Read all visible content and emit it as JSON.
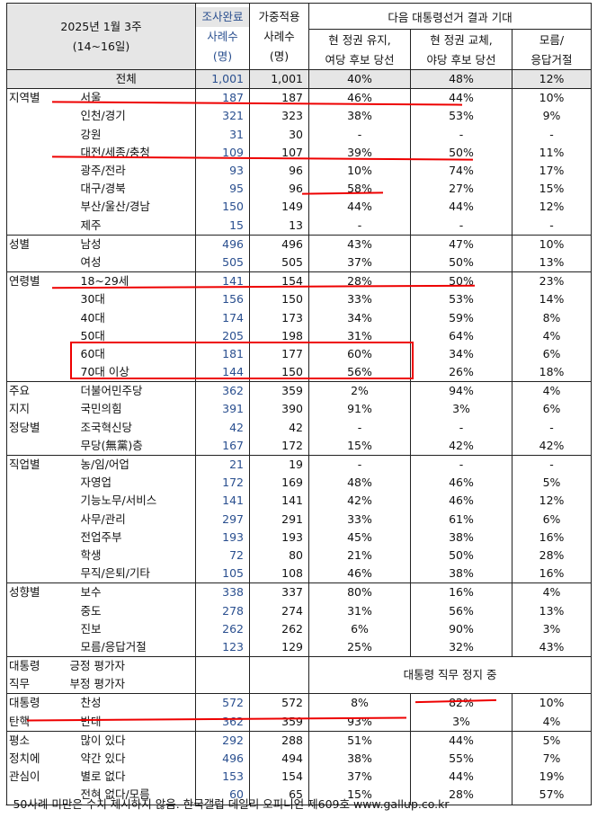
{
  "header": {
    "title_line1": "2025년 1월 3주",
    "title_line2": "(14~16일)",
    "col_sample_1": "조사완료",
    "col_sample_2": "사례수",
    "col_sample_3": "(명)",
    "col_weight_1": "가중적용",
    "col_weight_2": "사례수",
    "col_weight_3": "(명)",
    "group_label": "다음 대통령선거 결과 기대",
    "col_a_1": "현 정권 유지,",
    "col_a_2": "여당 후보 당선",
    "col_b_1": "현 정권 교체,",
    "col_b_2": "야당 후보 당선",
    "col_c_1": "모름/",
    "col_c_2": "응답거절"
  },
  "rows": [
    {
      "group": "",
      "label": "전체",
      "n": "1,001",
      "w": "1,001",
      "a": "40%",
      "b": "48%",
      "c": "12%",
      "total": true
    },
    {
      "group": "지역별",
      "label": "서울",
      "n": "187",
      "w": "187",
      "a": "46%",
      "b": "44%",
      "c": "10%",
      "sep": true
    },
    {
      "group": "",
      "label": "인천/경기",
      "n": "321",
      "w": "323",
      "a": "38%",
      "b": "53%",
      "c": "9%"
    },
    {
      "group": "",
      "label": "강원",
      "n": "31",
      "w": "30",
      "a": "-",
      "b": "-",
      "c": "-"
    },
    {
      "group": "",
      "label": "대전/세종/충청",
      "n": "109",
      "w": "107",
      "a": "39%",
      "b": "50%",
      "c": "11%"
    },
    {
      "group": "",
      "label": "광주/전라",
      "n": "93",
      "w": "96",
      "a": "10%",
      "b": "74%",
      "c": "17%"
    },
    {
      "group": "",
      "label": "대구/경북",
      "n": "95",
      "w": "96",
      "a": "58%",
      "b": "27%",
      "c": "15%"
    },
    {
      "group": "",
      "label": "부산/울산/경남",
      "n": "150",
      "w": "149",
      "a": "44%",
      "b": "44%",
      "c": "12%"
    },
    {
      "group": "",
      "label": "제주",
      "n": "15",
      "w": "13",
      "a": "-",
      "b": "-",
      "c": "-"
    },
    {
      "group": "성별",
      "label": "남성",
      "n": "496",
      "w": "496",
      "a": "43%",
      "b": "47%",
      "c": "10%",
      "sep": true
    },
    {
      "group": "",
      "label": "여성",
      "n": "505",
      "w": "505",
      "a": "37%",
      "b": "50%",
      "c": "13%"
    },
    {
      "group": "연령별",
      "label": "18~29세",
      "n": "141",
      "w": "154",
      "a": "28%",
      "b": "50%",
      "c": "23%",
      "sep": true
    },
    {
      "group": "",
      "label": "30대",
      "n": "156",
      "w": "150",
      "a": "33%",
      "b": "53%",
      "c": "14%"
    },
    {
      "group": "",
      "label": "40대",
      "n": "174",
      "w": "173",
      "a": "34%",
      "b": "59%",
      "c": "8%"
    },
    {
      "group": "",
      "label": "50대",
      "n": "205",
      "w": "198",
      "a": "31%",
      "b": "64%",
      "c": "4%"
    },
    {
      "group": "",
      "label": "60대",
      "n": "181",
      "w": "177",
      "a": "60%",
      "b": "34%",
      "c": "6%"
    },
    {
      "group": "",
      "label": "70대 이상",
      "n": "144",
      "w": "150",
      "a": "56%",
      "b": "26%",
      "c": "18%"
    },
    {
      "group": "주요",
      "label": "더불어민주당",
      "n": "362",
      "w": "359",
      "a": "2%",
      "b": "94%",
      "c": "4%",
      "sep": true
    },
    {
      "group": "지지",
      "label": "국민의힘",
      "n": "391",
      "w": "390",
      "a": "91%",
      "b": "3%",
      "c": "6%"
    },
    {
      "group": "정당별",
      "label": "조국혁신당",
      "n": "42",
      "w": "42",
      "a": "-",
      "b": "-",
      "c": "-"
    },
    {
      "group": "",
      "label": "무당(無黨)층",
      "n": "167",
      "w": "172",
      "a": "15%",
      "b": "42%",
      "c": "42%"
    },
    {
      "group": "직업별",
      "label": "농/임/어업",
      "n": "21",
      "w": "19",
      "a": "-",
      "b": "-",
      "c": "-",
      "sep": true
    },
    {
      "group": "",
      "label": "자영업",
      "n": "172",
      "w": "169",
      "a": "48%",
      "b": "46%",
      "c": "5%"
    },
    {
      "group": "",
      "label": "기능노무/서비스",
      "n": "141",
      "w": "141",
      "a": "42%",
      "b": "46%",
      "c": "12%"
    },
    {
      "group": "",
      "label": "사무/관리",
      "n": "297",
      "w": "291",
      "a": "33%",
      "b": "61%",
      "c": "6%"
    },
    {
      "group": "",
      "label": "전업주부",
      "n": "193",
      "w": "193",
      "a": "45%",
      "b": "38%",
      "c": "16%"
    },
    {
      "group": "",
      "label": "학생",
      "n": "72",
      "w": "80",
      "a": "21%",
      "b": "50%",
      "c": "28%"
    },
    {
      "group": "",
      "label": "무직/은퇴/기타",
      "n": "105",
      "w": "108",
      "a": "46%",
      "b": "38%",
      "c": "16%"
    },
    {
      "group": "성향별",
      "label": "보수",
      "n": "338",
      "w": "337",
      "a": "80%",
      "b": "16%",
      "c": "4%",
      "sep": true
    },
    {
      "group": "",
      "label": "중도",
      "n": "278",
      "w": "274",
      "a": "31%",
      "b": "56%",
      "c": "13%"
    },
    {
      "group": "",
      "label": "진보",
      "n": "262",
      "w": "262",
      "a": "6%",
      "b": "90%",
      "c": "3%"
    },
    {
      "group": "",
      "label": "모름/응답거절",
      "n": "123",
      "w": "129",
      "a": "25%",
      "b": "32%",
      "c": "43%"
    }
  ],
  "suspension": {
    "group_1": "대통령",
    "group_2": "직무",
    "label_1": "긍정 평가자",
    "label_2": "부정 평가자",
    "text": "대통령 직무 정지 중"
  },
  "rows2": [
    {
      "group": "대통령",
      "label": "찬성",
      "n": "572",
      "w": "572",
      "a": "8%",
      "b": "82%",
      "c": "10%",
      "sep": true
    },
    {
      "group": "탄핵",
      "label": "반대",
      "n": "362",
      "w": "359",
      "a": "93%",
      "b": "3%",
      "c": "4%"
    },
    {
      "group": "평소",
      "label": "많이 있다",
      "n": "292",
      "w": "288",
      "a": "51%",
      "b": "44%",
      "c": "5%",
      "sep": true
    },
    {
      "group": "정치에",
      "label": "약간 있다",
      "n": "496",
      "w": "494",
      "a": "38%",
      "b": "55%",
      "c": "7%"
    },
    {
      "group": "관심이",
      "label": "별로 없다",
      "n": "153",
      "w": "154",
      "a": "37%",
      "b": "44%",
      "c": "19%"
    },
    {
      "group": "",
      "label": "전혀 없다/모름",
      "n": "60",
      "w": "65",
      "a": "15%",
      "b": "28%",
      "c": "57%"
    }
  ],
  "footnote": "- 50사례 미만은 수치 제시하지 않음. 한국갤럽 데일리 오피니언 제609호 www.gallup.co.kr",
  "colors": {
    "sample_blue": "#2a4f8f",
    "header_gray": "#e6e6e6",
    "annotation_red": "#e00000"
  }
}
